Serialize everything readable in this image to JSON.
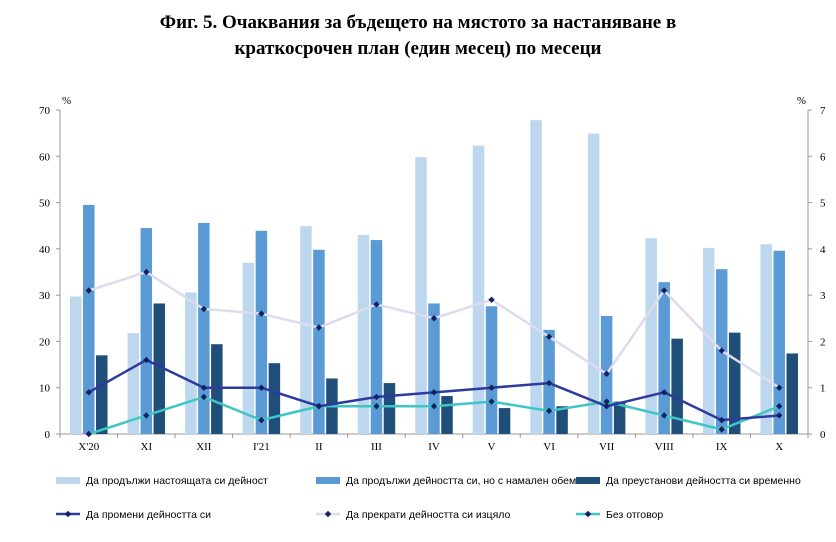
{
  "title_line1": "Фиг. 5. Очаквания за бъдещето на мястото за настаняване в",
  "title_line2": "краткосрочен план (един месец) по месеци",
  "chart_data": {
    "type": "bar",
    "categories": [
      "X'20",
      "XI",
      "XII",
      "I'21",
      "II",
      "III",
      "IV",
      "V",
      "VI",
      "VII",
      "VIII",
      "IX",
      "X"
    ],
    "y_left": {
      "unit": "%",
      "ylim": [
        0,
        70
      ],
      "ticks": [
        "0",
        "10",
        "20",
        "30",
        "40",
        "50",
        "60",
        "70"
      ]
    },
    "y_right": {
      "unit": "%",
      "ylim": [
        0,
        7
      ],
      "ticks": [
        "0",
        "1",
        "2",
        "3",
        "4",
        "5",
        "6",
        "7"
      ]
    },
    "grid": false,
    "legend_position": "bottom",
    "bar_series": [
      {
        "name": "Да продължи настоящата си дейност",
        "color": "#bdd7ee",
        "axis": "left",
        "values": [
          29.7,
          21.8,
          30.6,
          37.0,
          44.9,
          43.0,
          59.8,
          62.3,
          67.8,
          64.9,
          42.3,
          40.2,
          41.0
        ]
      },
      {
        "name": "Да продължи дейността си, но с намален обем",
        "color": "#5b9bd5",
        "axis": "left",
        "values": [
          49.5,
          44.5,
          45.6,
          43.9,
          39.8,
          41.9,
          28.2,
          27.6,
          22.5,
          25.5,
          32.8,
          35.6,
          39.6
        ]
      },
      {
        "name": "Да преустанови дейността си временно",
        "color": "#1f4e79",
        "axis": "left",
        "values": [
          17.0,
          28.2,
          19.4,
          15.3,
          12.0,
          11.0,
          8.2,
          5.6,
          6.0,
          7.0,
          20.6,
          21.9,
          17.4
        ]
      }
    ],
    "line_series": [
      {
        "name": "Да промени дейността си",
        "color": "#2e3a9e",
        "marker_color": "#14215e",
        "axis": "right",
        "values": [
          0.9,
          1.6,
          1.0,
          1.0,
          0.6,
          0.8,
          0.9,
          1.0,
          1.1,
          0.6,
          0.9,
          0.3,
          0.4
        ]
      },
      {
        "name": "Да прекрати дейността си изцяло",
        "color": "#dcdcee",
        "marker_color": "#14215e",
        "axis": "right",
        "values": [
          3.1,
          3.5,
          2.7,
          2.6,
          2.3,
          2.8,
          2.5,
          2.9,
          2.1,
          1.3,
          3.1,
          1.8,
          1.0
        ]
      },
      {
        "name": "Без отговор",
        "color": "#3ec6c6",
        "marker_color": "#14215e",
        "axis": "right",
        "values": [
          0.0,
          0.4,
          0.8,
          0.3,
          0.6,
          0.6,
          0.6,
          0.7,
          0.5,
          0.7,
          0.4,
          0.1,
          0.6
        ]
      }
    ]
  }
}
